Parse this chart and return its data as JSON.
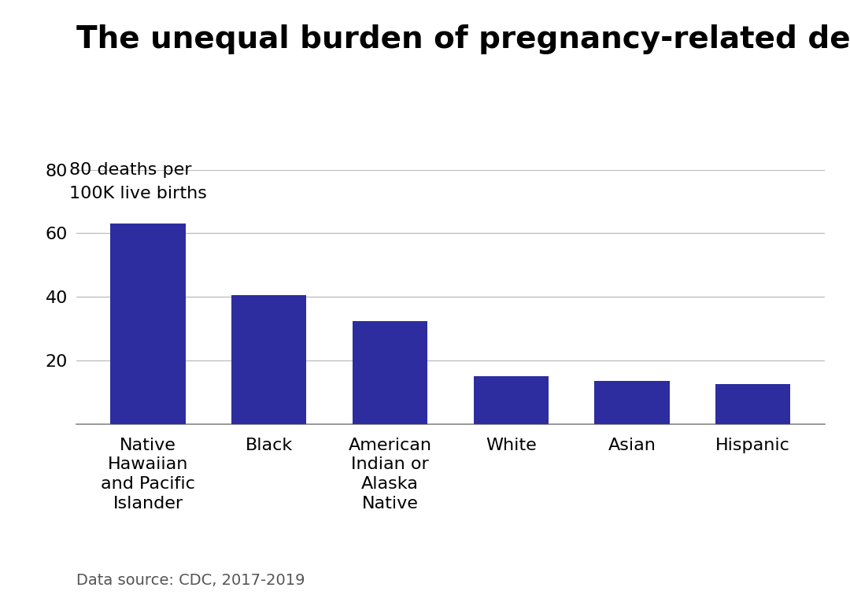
{
  "title": "The unequal burden of pregnancy-related deaths",
  "ylabel_line1": "80 deaths per",
  "ylabel_line2": "100K live births",
  "categories": [
    "Native\nHawaiian\nand Pacific\nIslander",
    "Black",
    "American\nIndian or\nAlaska\nNative",
    "White",
    "Asian",
    "Hispanic"
  ],
  "values": [
    63,
    40.5,
    32.5,
    15,
    13.5,
    12.5
  ],
  "bar_color": "#2d2d9f",
  "ylim": [
    0,
    80
  ],
  "yticks": [
    20,
    40,
    60,
    80
  ],
  "background_color": "#ffffff",
  "title_fontsize": 28,
  "tick_fontsize": 16,
  "ylabel_fontsize": 16,
  "source_text": "Data source: CDC, 2017-2019",
  "source_fontsize": 14
}
